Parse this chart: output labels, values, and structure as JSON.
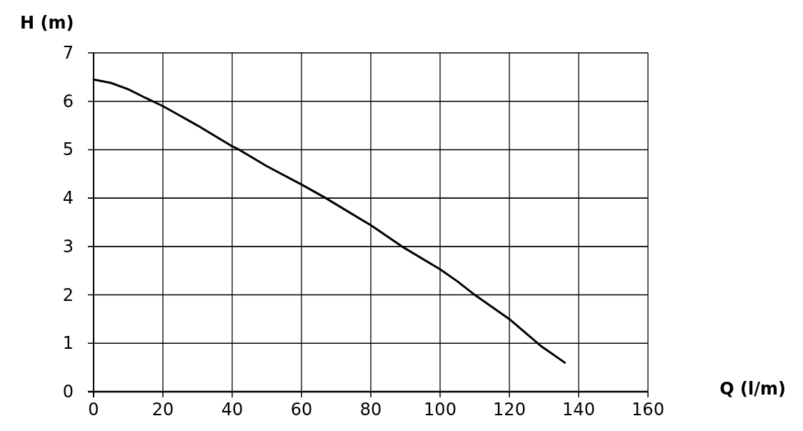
{
  "chart_data": {
    "type": "line",
    "xlabel": "Q (l/m)",
    "ylabel": "H (m)",
    "x": [
      0,
      5,
      10,
      15,
      20,
      30,
      40,
      42,
      50,
      60,
      67,
      80,
      89,
      100,
      105,
      110,
      120,
      129,
      136
    ],
    "series": [
      {
        "color": "#000000",
        "values": [
          6.45,
          6.38,
          6.25,
          6.07,
          5.9,
          5.5,
          5.07,
          5,
          4.66,
          4.28,
          4,
          3.44,
          3,
          2.53,
          2.28,
          2,
          1.5,
          0.95,
          0.6
        ]
      }
    ],
    "xlim": [
      0,
      160
    ],
    "ylim": [
      0,
      7
    ],
    "xticks": [
      0,
      20,
      40,
      60,
      80,
      100,
      120,
      140,
      160
    ],
    "yticks": [
      0,
      1,
      2,
      3,
      4,
      5,
      6,
      7
    ],
    "grid": true,
    "marker": "none",
    "line_style": "solid"
  }
}
